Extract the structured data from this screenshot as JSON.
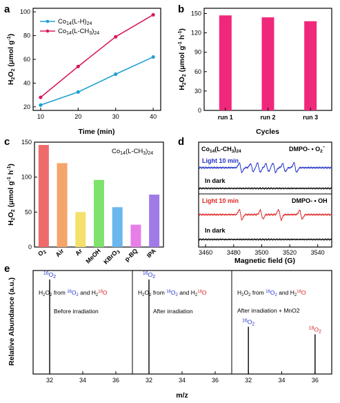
{
  "figure": {
    "panel_labels": [
      "a",
      "b",
      "c",
      "d",
      "e"
    ]
  },
  "chart_data": [
    {
      "id": "a",
      "type": "line",
      "xlabel": "Time (min)",
      "ylabel": "H2O2 (μmol g-1)",
      "x": [
        10,
        20,
        30,
        40
      ],
      "xlim": [
        8,
        42
      ],
      "ylim": [
        17,
        103
      ],
      "xticks": [
        10,
        20,
        30,
        40
      ],
      "yticks": [
        20,
        40,
        60,
        80,
        100
      ],
      "grid": false,
      "legend_position": "top-left",
      "series": [
        {
          "name": "Co14(L-H)24",
          "values": [
            21.5,
            32.5,
            47.5,
            62.0
          ],
          "color": "#1f9fd4"
        },
        {
          "name": "Co14(L-CH3)24",
          "values": [
            28.0,
            54.0,
            79.0,
            97.5
          ],
          "color": "#d81a5e"
        }
      ]
    },
    {
      "id": "b",
      "type": "bar",
      "xlabel": "Cycles",
      "ylabel": "H2O2 (μmol g-1 h-1)",
      "categories": [
        "run 1",
        "run 2",
        "run 3"
      ],
      "values": [
        147,
        144,
        138
      ],
      "ylim": [
        0,
        158
      ],
      "yticks": [
        0,
        30,
        60,
        90,
        120,
        150
      ],
      "color": "#f0287c",
      "grid": false
    },
    {
      "id": "c",
      "type": "bar",
      "title": "Co14(L-CH3)24",
      "ylabel": "H2O2 (μmol g-1 h-1)",
      "categories": [
        "O2",
        "Air",
        "Ar",
        "MeOH",
        "KBrO3",
        "p-BQ",
        "IPA"
      ],
      "values": [
        146,
        120,
        50,
        96,
        57,
        32,
        75
      ],
      "colors": [
        "#ef6b6b",
        "#f5a46a",
        "#f5e06a",
        "#7ee36c",
        "#6ab6ef",
        "#e87fe8",
        "#a07be8"
      ],
      "ylim": [
        0,
        150
      ],
      "yticks": [
        0,
        50,
        100,
        150
      ],
      "grid": false
    },
    {
      "id": "d",
      "type": "line",
      "xlabel": "Magnetic field (G)",
      "xlim": [
        3455,
        3550
      ],
      "xticks": [
        3460,
        3480,
        3500,
        3520,
        3540
      ],
      "grid": false,
      "top_label": "Co14(L-CH3)24",
      "top_probe": "DMPO- • O2−",
      "bottom_probe": "DMPO- • OH",
      "series": [
        {
          "name": "Light 10 min",
          "probe": "DMPO- • O2−",
          "color": "#2130c8"
        },
        {
          "name": "In dark",
          "probe": "DMPO- • O2−",
          "color": "#000000"
        },
        {
          "name": "Light 10 min",
          "probe": "DMPO- • OH",
          "color": "#e02525"
        },
        {
          "name": "In dark",
          "probe": "DMPO- • OH",
          "color": "#000000"
        }
      ],
      "o2_peak_centers": [
        3485,
        3493,
        3498,
        3504,
        3509,
        3516,
        3524
      ],
      "oh_peak_centers": [
        3485,
        3500,
        3513,
        3528
      ]
    },
    {
      "id": "e",
      "type": "bar",
      "xlabel": "m/z",
      "ylabel": "Relative Abundance (a.u.)",
      "xticks": [
        32,
        34,
        36
      ],
      "xlim": [
        31,
        37
      ],
      "grid": false,
      "panels": [
        {
          "heading": "H2O2 from 16O2 and H2 18O",
          "condition": "Before irradiation",
          "peaks": [
            {
              "label": "16O2",
              "mz": 32,
              "height": 1.0,
              "color": "#2233cc"
            }
          ]
        },
        {
          "heading": "H2O2 from 16O2 and H2 18O",
          "condition": "After irradiation",
          "peaks": [
            {
              "label": "16O2",
              "mz": 32,
              "height": 1.0,
              "color": "#2233cc"
            }
          ]
        },
        {
          "heading": "H2O2 from 16O2 and H2 18O",
          "condition": "After irradiation + MnO2",
          "peaks": [
            {
              "label": "16O2",
              "mz": 32,
              "height": 0.5,
              "color": "#2233cc"
            },
            {
              "label": "18O2",
              "mz": 36,
              "height": 0.42,
              "color": "#d32020"
            }
          ]
        }
      ]
    }
  ]
}
